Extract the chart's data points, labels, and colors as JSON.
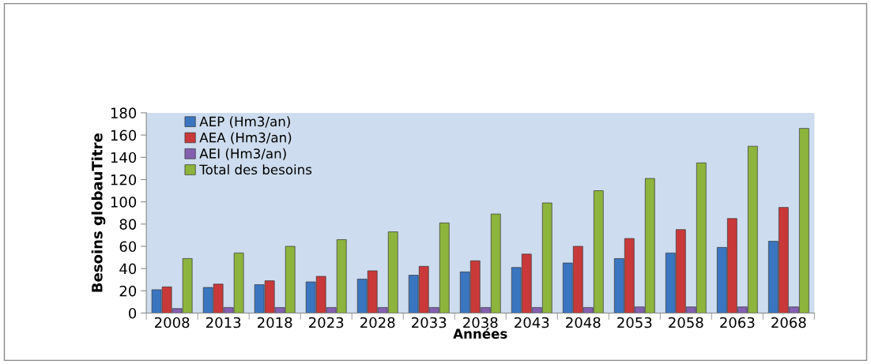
{
  "chart_data": {
    "type": "bar",
    "xlabel": "Années",
    "ylabel": "Besoins globauTitre",
    "categories": [
      "2008",
      "2013",
      "2018",
      "2023",
      "2028",
      "2033",
      "2038",
      "2043",
      "2048",
      "2053",
      "2058",
      "2063",
      "2068"
    ],
    "series": [
      {
        "name": "AEP (Hm3/an)",
        "color": "#3a75c0",
        "values": [
          21,
          23,
          25.5,
          28,
          30.5,
          34,
          37,
          41,
          45,
          49,
          54,
          59,
          64.5
        ]
      },
      {
        "name": "AEA (Hm3/an)",
        "color": "#c9393a",
        "values": [
          23.5,
          26,
          29,
          33,
          38,
          42,
          47,
          53,
          60,
          67,
          75,
          85,
          95
        ]
      },
      {
        "name": "AEI (Hm3/an)",
        "color": "#8460b0",
        "values": [
          4,
          5,
          5,
          5,
          5,
          5,
          5,
          5,
          5,
          5.5,
          5.5,
          5.5,
          5.5
        ]
      },
      {
        "name": "Total des besoins",
        "color": "#8db43c",
        "values": [
          49,
          54,
          60,
          66,
          73,
          81,
          89,
          99,
          110,
          121,
          135,
          150,
          166
        ]
      }
    ],
    "ylim": [
      0,
      180
    ],
    "yticks": [
      0,
      20,
      40,
      60,
      80,
      100,
      120,
      140,
      160,
      180
    ],
    "grid": false,
    "legend": "top left"
  }
}
